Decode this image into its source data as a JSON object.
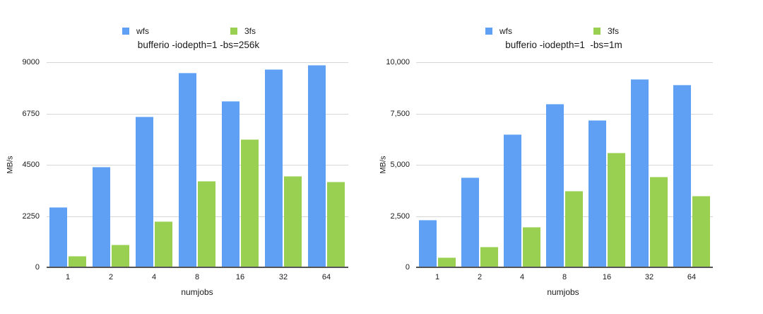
{
  "chart_data": [
    {
      "type": "bar",
      "title": "bufferio -iodepth=1 -bs=256k",
      "xlabel": "numjobs",
      "ylabel": "MB/s",
      "categories": [
        "1",
        "2",
        "4",
        "8",
        "16",
        "32",
        "64"
      ],
      "series": [
        {
          "name": "wfs",
          "color": "#5fa0f5",
          "values": [
            2650,
            4400,
            6620,
            8530,
            7300,
            8680,
            8880
          ]
        },
        {
          "name": "3fs",
          "color": "#99d051",
          "values": [
            500,
            1000,
            2030,
            3790,
            5620,
            4010,
            3750
          ]
        }
      ],
      "ylim": [
        0,
        9000
      ],
      "yticks": [
        0,
        2250,
        4500,
        6750,
        9000
      ],
      "ytick_labels": [
        "0",
        "2250",
        "4500",
        "6750",
        "9000"
      ],
      "grid": true,
      "legend_position": "top"
    },
    {
      "type": "bar",
      "title": "bufferio -iodepth=1  -bs=1m",
      "xlabel": "numjobs",
      "ylabel": "MB/s",
      "categories": [
        "1",
        "2",
        "4",
        "8",
        "16",
        "32",
        "64"
      ],
      "series": [
        {
          "name": "wfs",
          "color": "#5fa0f5",
          "values": [
            2300,
            4380,
            6480,
            7970,
            7170,
            9160,
            8900
          ]
        },
        {
          "name": "3fs",
          "color": "#99d051",
          "values": [
            500,
            1000,
            1950,
            3730,
            5590,
            4420,
            3480
          ]
        }
      ],
      "ylim": [
        0,
        10000
      ],
      "yticks": [
        0,
        2500,
        5000,
        7500,
        10000
      ],
      "ytick_labels": [
        "0",
        "2,500",
        "5,000",
        "7,500",
        "10,000"
      ],
      "grid": true,
      "legend_position": "top"
    }
  ]
}
